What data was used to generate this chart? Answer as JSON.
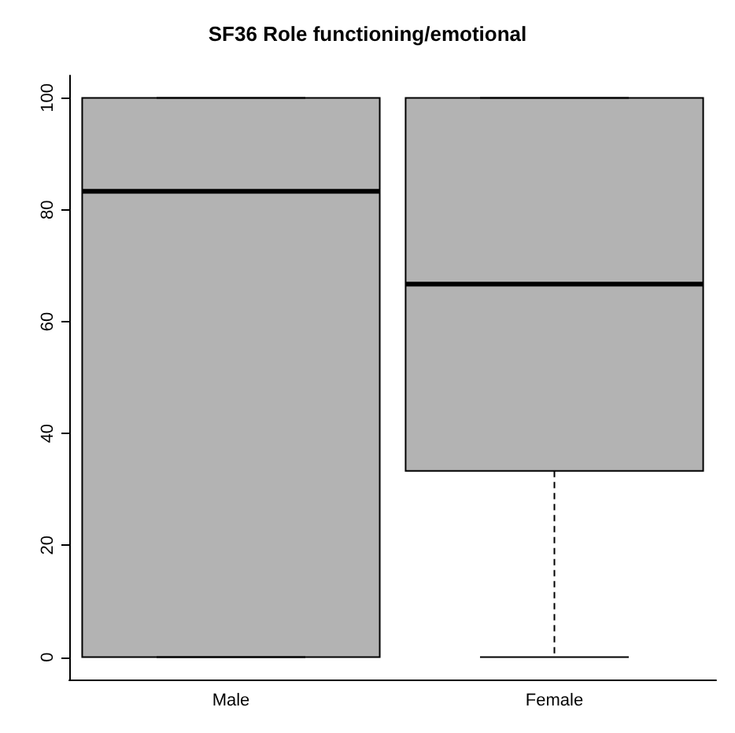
{
  "chart_data": {
    "type": "box",
    "title": "SF36 Role functioning/emotional",
    "categories": [
      "Male",
      "Female"
    ],
    "boxes": [
      {
        "low": 0,
        "q1": 0,
        "median": 83.3,
        "q3": 100,
        "high": 100
      },
      {
        "low": 0,
        "q1": 33.3,
        "median": 66.7,
        "q3": 100,
        "high": 100
      }
    ],
    "color": "#b3b3b3",
    "ylim": [
      -4,
      104
    ],
    "yticks": [
      0,
      20,
      40,
      60,
      80,
      100
    ]
  }
}
